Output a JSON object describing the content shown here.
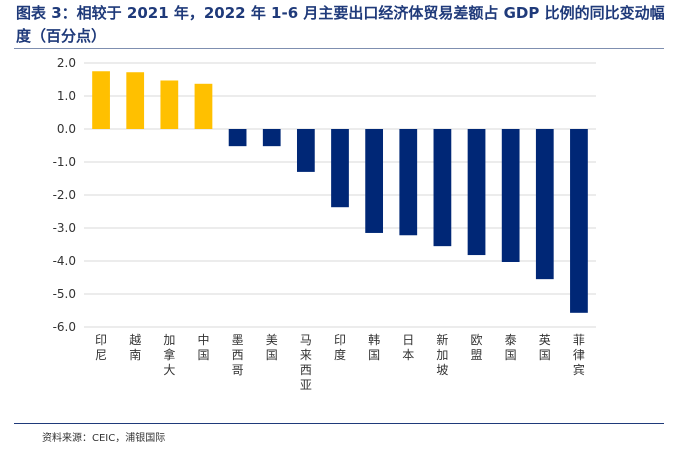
{
  "header": {
    "label": "图表 3：",
    "title": "相较于 2021 年，2022 年 1-6 月主要出口经济体贸易差额占 GDP 比例的同比变动幅度（百分点）"
  },
  "source": "资料来源：CEIC，浦银国际",
  "colors": {
    "positive": "#ffc000",
    "negative": "#002776",
    "grid": "#d9d9d9"
  },
  "chart_data": {
    "type": "bar",
    "title": "相较于 2021 年，2022 年 1-6 月主要出口经济体贸易差额占 GDP 比例的同比变动幅度（百分点）",
    "categories": [
      "印尼",
      "越南",
      "加拿大",
      "中国",
      "墨西哥",
      "美国",
      "马来西亚",
      "印度",
      "韩国",
      "日本",
      "新加坡",
      "欧盟",
      "泰国",
      "英国",
      "菲律宾"
    ],
    "values": [
      1.75,
      1.72,
      1.47,
      1.37,
      -0.52,
      -0.52,
      -1.3,
      -2.37,
      -3.15,
      -3.22,
      -3.55,
      -3.82,
      -4.03,
      -4.55,
      -5.57
    ],
    "ylim": [
      -6.0,
      2.0
    ],
    "yticks": [
      2.0,
      1.0,
      0.0,
      -1.0,
      -2.0,
      -3.0,
      -4.0,
      -5.0,
      -6.0
    ],
    "ytick_labels": [
      "2.0",
      "1.0",
      "0.0",
      "-1.0",
      "-2.0",
      "-3.0",
      "-4.0",
      "-5.0",
      "-6.0"
    ],
    "grid": true,
    "legend": "none"
  }
}
